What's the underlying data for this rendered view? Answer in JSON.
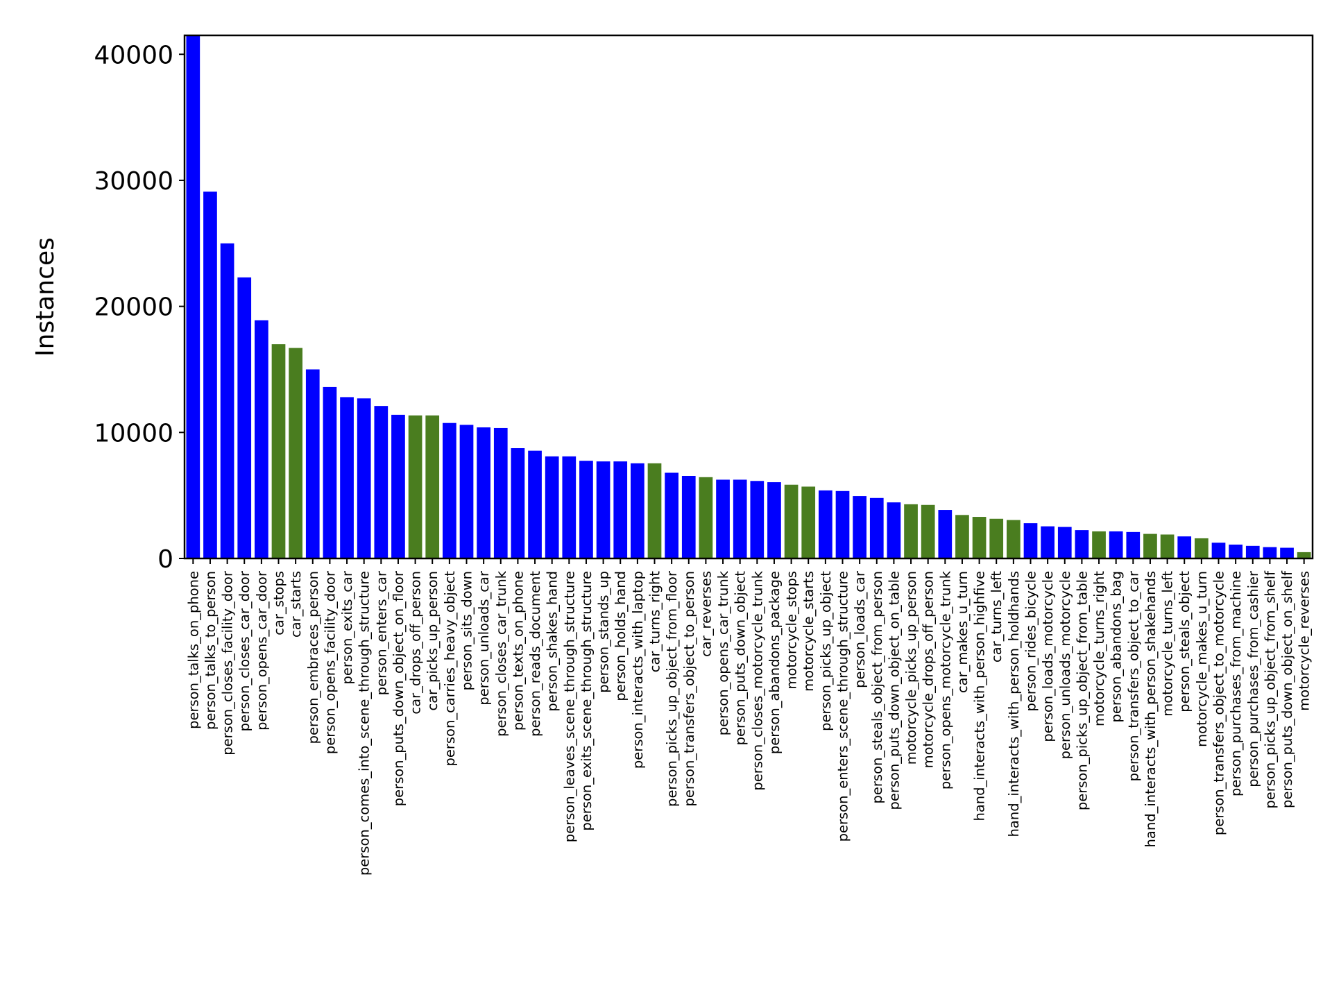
{
  "chart_data": {
    "type": "bar",
    "ylabel": "Instances",
    "xlabel": "",
    "ylim": [
      0,
      41500
    ],
    "yticks": [
      0,
      10000,
      20000,
      30000,
      40000
    ],
    "grid": false,
    "legend": "none",
    "colors": {
      "blue": "#0000ff",
      "green": "#4a7d1f"
    },
    "categories": [
      "person_talks_on_phone",
      "person_talks_to_person",
      "person_closes_facility_door",
      "person_closes_car_door",
      "person_opens_car_door",
      "car_stops",
      "car_starts",
      "person_embraces_person",
      "person_opens_facility_door",
      "person_exits_car",
      "person_comes_into_scene_through_structure",
      "person_enters_car",
      "person_puts_down_object_on_floor",
      "car_drops_off_person",
      "car_picks_up_person",
      "person_carries_heavy_object",
      "person_sits_down",
      "person_unloads_car",
      "person_closes_car_trunk",
      "person_texts_on_phone",
      "person_reads_document",
      "person_shakes_hand",
      "person_leaves_scene_through_structure",
      "person_exits_scene_through_structure",
      "person_stands_up",
      "person_holds_hand",
      "person_interacts_with_laptop",
      "car_turns_right",
      "person_picks_up_object_from_floor",
      "person_transfers_object_to_person",
      "car_reverses",
      "person_opens_car_trunk",
      "person_puts_down_object",
      "person_closes_motorcycle_trunk",
      "person_abandons_package",
      "motorcycle_stops",
      "motorcycle_starts",
      "person_picks_up_object",
      "person_enters_scene_through_structure",
      "person_loads_car",
      "person_steals_object_from_person",
      "person_puts_down_object_on_table",
      "motorcycle_picks_up_person",
      "motorcycle_drops_off_person",
      "person_opens_motorcycle_trunk",
      "car_makes_u_turn",
      "hand_interacts_with_person_highfive",
      "car_turns_left",
      "hand_interacts_with_person_holdhands",
      "person_rides_bicycle",
      "person_loads_motorcycle",
      "person_unloads_motorcycle",
      "person_picks_up_object_from_table",
      "motorcycle_turns_right",
      "person_abandons_bag",
      "person_transfers_object_to_car",
      "hand_interacts_with_person_shakehands",
      "motorcycle_turns_left",
      "person_steals_object",
      "motorcycle_makes_u_turn",
      "person_transfers_object_to_motorcycle",
      "person_purchases_from_machine",
      "person_purchases_from_cashier",
      "person_picks_up_object_from_shelf",
      "person_puts_down_object_on_shelf",
      "motorcycle_reverses"
    ],
    "values": [
      41500,
      29100,
      25000,
      22300,
      18900,
      17000,
      16700,
      15000,
      13600,
      12800,
      12700,
      12100,
      11400,
      11350,
      11350,
      10750,
      10600,
      10400,
      10350,
      8750,
      8550,
      8100,
      8100,
      7750,
      7700,
      7700,
      7550,
      7550,
      6800,
      6550,
      6450,
      6250,
      6250,
      6150,
      6050,
      5850,
      5700,
      5400,
      5350,
      4950,
      4800,
      4450,
      4300,
      4250,
      3850,
      3450,
      3300,
      3150,
      3050,
      2800,
      2550,
      2500,
      2250,
      2150,
      2150,
      2100,
      1950,
      1900,
      1750,
      1600,
      1250,
      1100,
      1000,
      900,
      850,
      500
    ],
    "bar_colors": [
      "blue",
      "blue",
      "blue",
      "blue",
      "blue",
      "green",
      "green",
      "blue",
      "blue",
      "blue",
      "blue",
      "blue",
      "blue",
      "green",
      "green",
      "blue",
      "blue",
      "blue",
      "blue",
      "blue",
      "blue",
      "blue",
      "blue",
      "blue",
      "blue",
      "blue",
      "blue",
      "green",
      "blue",
      "blue",
      "green",
      "blue",
      "blue",
      "blue",
      "blue",
      "green",
      "green",
      "blue",
      "blue",
      "blue",
      "blue",
      "blue",
      "green",
      "green",
      "blue",
      "green",
      "green",
      "green",
      "green",
      "blue",
      "blue",
      "blue",
      "blue",
      "green",
      "blue",
      "blue",
      "green",
      "green",
      "blue",
      "green",
      "blue",
      "blue",
      "blue",
      "blue",
      "blue",
      "green"
    ]
  }
}
